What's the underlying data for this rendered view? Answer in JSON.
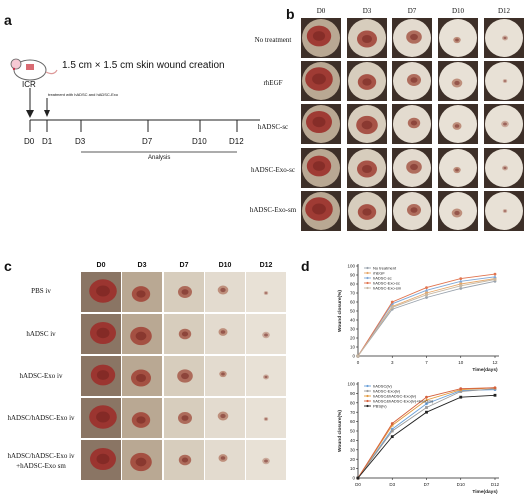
{
  "panel_a": {
    "label": "a",
    "wound_text": "1.5 cm × 1.5 cm skin wound creation",
    "mouse_label": "ICR",
    "treatment_text": "treatment with hADSC and hADSC-Exo",
    "timepoints": [
      "D0",
      "D1",
      "D3",
      "D7",
      "D10",
      "D12"
    ],
    "analysis_label": "Analysis"
  },
  "panel_b": {
    "label": "b",
    "columns": [
      "D0",
      "D3",
      "D7",
      "D10",
      "D12"
    ],
    "rows": [
      "No treatment",
      "rhEGF",
      "hADSC-sc",
      "hADSC-Exo-sc",
      "hADSC-Exo-sm"
    ]
  },
  "panel_c": {
    "label": "c",
    "columns": [
      "D0",
      "D3",
      "D7",
      "D10",
      "D12"
    ],
    "rows": [
      {
        "line1": "PBS iv",
        "line2": ""
      },
      {
        "line1": "hADSC iv",
        "line2": ""
      },
      {
        "line1": "hADSC-Exo iv",
        "line2": ""
      },
      {
        "line1": "hADSC/hADSC-Exo iv",
        "line2": ""
      },
      {
        "line1": "hADSC/hADSC-Exo iv",
        "line2": "+hADSC-Exo sm"
      }
    ]
  },
  "panel_d": {
    "label": "d"
  },
  "colors": {
    "no_treatment": "#9aa3ad",
    "rhegf": "#e6a86a",
    "hadsc_sc": "#7fa7d6",
    "hadsc_exo_sc": "#e1744f",
    "hadsc_exo_sm": "#c6b8a4",
    "pbs": "#222222",
    "hadsc_iv": "#6aa0d8",
    "hadsc_exo_iv": "#9a9a9a",
    "combo_iv": "#e39a3e",
    "combo_sm": "#d4603c"
  },
  "chart_data": [
    {
      "type": "line",
      "title": "",
      "xlabel": "Time(days)",
      "ylabel": "Wound closure(%)",
      "x": [
        0,
        3,
        7,
        10,
        12
      ],
      "xticks": [
        "0",
        "3",
        "7",
        "10",
        "12"
      ],
      "ylim": [
        0,
        100
      ],
      "yticks": [
        "0",
        "10",
        "20",
        "30",
        "40",
        "50",
        "60",
        "70",
        "80",
        "90",
        "100"
      ],
      "legend_position": "top-left",
      "series": [
        {
          "name": "No treatment",
          "values": [
            0,
            52,
            65,
            75,
            83
          ]
        },
        {
          "name": "rhEGF",
          "values": [
            0,
            55,
            70,
            80,
            86
          ]
        },
        {
          "name": "hADSC-sc",
          "values": [
            0,
            58,
            73,
            83,
            88
          ]
        },
        {
          "name": "hADSC-Exo-sc",
          "values": [
            0,
            60,
            76,
            86,
            91
          ]
        },
        {
          "name": "hADSC-Exo-sm",
          "values": [
            0,
            54,
            68,
            78,
            85
          ]
        }
      ]
    },
    {
      "type": "line",
      "title": "",
      "xlabel": "Time(days)",
      "ylabel": "Wound closure(%)",
      "x": [
        "D0",
        "D3",
        "D7",
        "D10",
        "D12"
      ],
      "xticks": [
        "D0",
        "D3",
        "D7",
        "D10",
        "D12"
      ],
      "ylim": [
        0,
        100
      ],
      "yticks": [
        "0",
        "10",
        "20",
        "30",
        "40",
        "50",
        "60",
        "70",
        "80",
        "90",
        "100"
      ],
      "legend_position": "top-left",
      "series": [
        {
          "name": "hADSC(iv)",
          "values": [
            0,
            52,
            79,
            93,
            94
          ]
        },
        {
          "name": "hADSC-Exo(iv)",
          "values": [
            0,
            50,
            75,
            92,
            95
          ]
        },
        {
          "name": "hADSC&hADSC-Exo(iv)",
          "values": [
            0,
            56,
            83,
            94,
            96
          ]
        },
        {
          "name": "hADSC&hADSC-Exo(iv)+Exo(sm)",
          "values": [
            0,
            58,
            86,
            95,
            96
          ]
        },
        {
          "name": "PBS(iv)",
          "values": [
            0,
            44,
            70,
            86,
            88
          ]
        }
      ]
    }
  ]
}
